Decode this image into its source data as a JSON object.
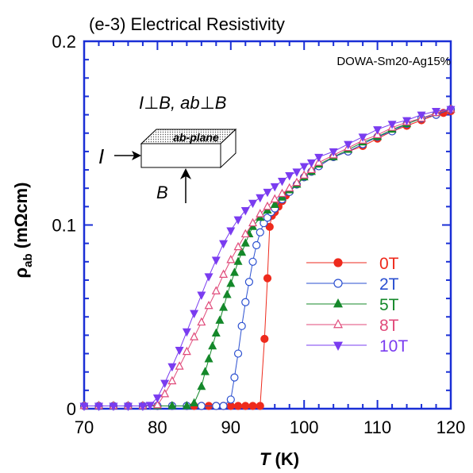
{
  "chart_data": {
    "type": "line",
    "title": "(e-3) Electrical Resistivity",
    "sample_label": "DOWA-Sm20-Ag15%",
    "geometry_label": "I⊥B, ab⊥B",
    "inset": {
      "plane_label": "ab-plane",
      "current_label": "I",
      "field_label": "B"
    },
    "xlabel": "T (K)",
    "ylabel": "ρab (mΩcm)",
    "xlim": [
      70,
      120
    ],
    "ylim": [
      0,
      0.2
    ],
    "xticks": [
      70,
      80,
      90,
      100,
      110,
      120
    ],
    "yticks": [
      0,
      0.1,
      0.2
    ],
    "xtick_labels": [
      "70",
      "80",
      "90",
      "100",
      "110",
      "120"
    ],
    "ytick_labels": [
      "0",
      "0.1",
      "0.2"
    ],
    "legend_position": "center-right",
    "frame_color": "#1a2fd6",
    "series": [
      {
        "name": "0T",
        "color": "#ee2a1c",
        "marker": "circle-filled",
        "x": [
          70,
          72,
          74,
          76,
          78,
          80,
          82,
          84,
          85,
          86,
          87,
          88,
          89,
          90,
          91,
          92,
          93,
          94,
          94.6,
          95,
          95.3,
          95.6,
          96,
          96.5,
          97,
          97.5,
          98,
          99,
          100,
          101,
          102,
          104,
          106,
          108,
          110,
          112,
          114,
          116,
          118,
          119,
          120
        ],
        "y": [
          0.0015,
          0.0015,
          0.0015,
          0.0015,
          0.0015,
          0.0015,
          0.0015,
          0.0015,
          0.0015,
          0.0015,
          0.0015,
          0.0015,
          0.0015,
          0.0015,
          0.0015,
          0.0015,
          0.0015,
          0.0015,
          0.038,
          0.071,
          0.099,
          0.105,
          0.107,
          0.11,
          0.113,
          0.116,
          0.118,
          0.122,
          0.126,
          0.129,
          0.132,
          0.137,
          0.14,
          0.143,
          0.147,
          0.151,
          0.154,
          0.157,
          0.16,
          0.161,
          0.162
        ]
      },
      {
        "name": "2T",
        "color": "#2a4fd0",
        "marker": "circle-open",
        "x": [
          70,
          72,
          74,
          76,
          78,
          80,
          82,
          84,
          86,
          88,
          89,
          90,
          90.5,
          91,
          91.5,
          92,
          92.5,
          93,
          93.5,
          94,
          94.5,
          95,
          95.5,
          96,
          97,
          98,
          99,
          100,
          101,
          102,
          104,
          106,
          108,
          110,
          112,
          114,
          116,
          118,
          120
        ],
        "y": [
          0.0015,
          0.0015,
          0.0015,
          0.0015,
          0.0015,
          0.0015,
          0.0015,
          0.0015,
          0.0015,
          0.0015,
          0.0015,
          0.005,
          0.017,
          0.03,
          0.045,
          0.058,
          0.069,
          0.08,
          0.089,
          0.096,
          0.101,
          0.104,
          0.107,
          0.109,
          0.114,
          0.118,
          0.122,
          0.126,
          0.129,
          0.132,
          0.137,
          0.14,
          0.144,
          0.148,
          0.151,
          0.155,
          0.158,
          0.16,
          0.163
        ]
      },
      {
        "name": "5T",
        "color": "#14882a",
        "marker": "triangle-up-filled",
        "x": [
          70,
          72,
          74,
          76,
          78,
          80,
          82,
          84,
          85,
          86,
          86.5,
          87,
          87.5,
          88,
          88.5,
          89,
          89.5,
          90,
          90.5,
          91,
          91.5,
          92,
          92.5,
          93,
          94,
          95,
          96,
          97,
          98,
          99,
          100,
          101,
          102,
          104,
          106,
          108,
          110,
          112,
          114,
          116,
          118,
          120
        ],
        "y": [
          0.0015,
          0.0015,
          0.0015,
          0.0015,
          0.0015,
          0.0015,
          0.0015,
          0.0015,
          0.003,
          0.012,
          0.02,
          0.027,
          0.034,
          0.041,
          0.048,
          0.055,
          0.062,
          0.068,
          0.074,
          0.08,
          0.085,
          0.09,
          0.095,
          0.099,
          0.104,
          0.108,
          0.111,
          0.115,
          0.119,
          0.122,
          0.126,
          0.129,
          0.133,
          0.137,
          0.141,
          0.145,
          0.148,
          0.152,
          0.155,
          0.158,
          0.161,
          0.163
        ]
      },
      {
        "name": "8T",
        "color": "#e04a7a",
        "marker": "triangle-up-open",
        "x": [
          70,
          72,
          74,
          76,
          78,
          80,
          81,
          82,
          83,
          84,
          85,
          86,
          87,
          88,
          89,
          90,
          91,
          92,
          93,
          94,
          95,
          96,
          97,
          98,
          99,
          100,
          101,
          102,
          104,
          106,
          108,
          110,
          112,
          114,
          116,
          118,
          120
        ],
        "y": [
          0.0015,
          0.0015,
          0.0015,
          0.0015,
          0.0015,
          0.002,
          0.008,
          0.015,
          0.023,
          0.031,
          0.039,
          0.047,
          0.056,
          0.064,
          0.073,
          0.081,
          0.088,
          0.095,
          0.101,
          0.106,
          0.11,
          0.114,
          0.117,
          0.12,
          0.123,
          0.127,
          0.13,
          0.134,
          0.138,
          0.142,
          0.146,
          0.149,
          0.153,
          0.156,
          0.158,
          0.161,
          0.163
        ]
      },
      {
        "name": "10T",
        "color": "#7a3cf0",
        "marker": "triangle-down-filled",
        "x": [
          70,
          72,
          74,
          76,
          78,
          79,
          80,
          81,
          82,
          83,
          84,
          85,
          86,
          87,
          88,
          89,
          90,
          91,
          92,
          93,
          94,
          95,
          96,
          97,
          98,
          99,
          100,
          101,
          102,
          104,
          106,
          108,
          110,
          112,
          114,
          116,
          118,
          120
        ],
        "y": [
          0.0015,
          0.0015,
          0.0015,
          0.0015,
          0.0015,
          0.002,
          0.006,
          0.014,
          0.023,
          0.032,
          0.042,
          0.052,
          0.062,
          0.072,
          0.081,
          0.09,
          0.097,
          0.103,
          0.108,
          0.112,
          0.115,
          0.118,
          0.121,
          0.124,
          0.127,
          0.129,
          0.132,
          0.134,
          0.137,
          0.14,
          0.144,
          0.148,
          0.152,
          0.155,
          0.157,
          0.16,
          0.162,
          0.163
        ]
      }
    ]
  }
}
